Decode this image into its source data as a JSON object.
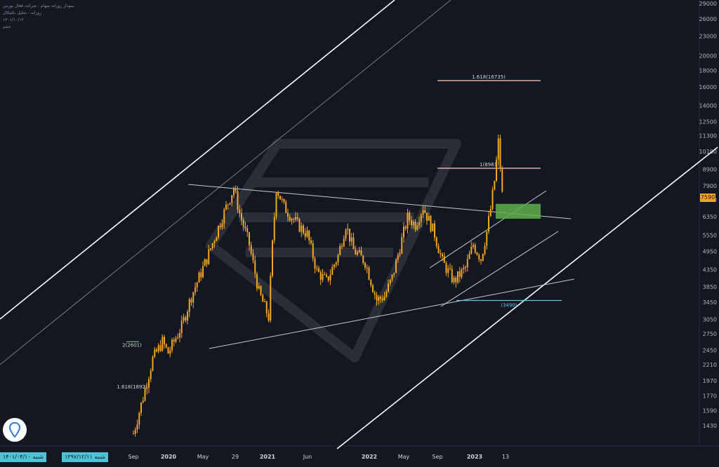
{
  "header": {
    "line1": "نمودار روزانه سهام - شرکت فعال بورس",
    "line2": "روزانه - تحلیل تکنیکال",
    "line3": "۱۴۰۱/۱۰/۱۲",
    "line4": "حجم"
  },
  "bottom_bar": {
    "date_left": "۱۴۰۱/۰۴/۱۰ شنبه",
    "date_right": "۱۳۹۷/۱۲/۱۱ شنبه"
  },
  "colors": {
    "background": "#131722",
    "candle": "#f5a623",
    "trendline": "#c7c9cf",
    "channel": "#ffffff",
    "fib_pink": "#f4b6b0",
    "fib_cyan": "#5bc6dc",
    "zone_green": "#5fae4e",
    "price_tag": "#f5a623",
    "date_tag": "#4fc3d4"
  },
  "icons": {
    "logo": "location-pin-icon"
  },
  "chart_data": {
    "type": "candlestick",
    "y_scale": "log",
    "ylim": [
      1300,
      29000
    ],
    "y_ticks": [
      1430,
      1590,
      1770,
      1970,
      2210,
      2450,
      2750,
      3050,
      3450,
      3850,
      4350,
      4950,
      5550,
      6350,
      7150,
      7900,
      8900,
      10100,
      11300,
      12500,
      14000,
      16000,
      18000,
      20000,
      23000,
      26000,
      29000
    ],
    "x_labels": [
      "Sep",
      "2020",
      "May",
      "29",
      "2021",
      "Jun",
      "2022",
      "May",
      "Sep",
      "2023",
      "13"
    ],
    "last_price": 7590,
    "price_path": [
      [
        0,
        1350
      ],
      [
        5,
        1750
      ],
      [
        10,
        2300
      ],
      [
        15,
        2600
      ],
      [
        18,
        2400
      ],
      [
        25,
        2900
      ],
      [
        30,
        3600
      ],
      [
        38,
        4700
      ],
      [
        45,
        6100
      ],
      [
        52,
        7800
      ],
      [
        55,
        6500
      ],
      [
        60,
        5200
      ],
      [
        65,
        3700
      ],
      [
        70,
        3100
      ],
      [
        72,
        5200
      ],
      [
        74,
        7800
      ],
      [
        78,
        6800
      ],
      [
        85,
        6000
      ],
      [
        90,
        5600
      ],
      [
        95,
        4300
      ],
      [
        100,
        4000
      ],
      [
        106,
        4800
      ],
      [
        110,
        6000
      ],
      [
        114,
        5000
      ],
      [
        120,
        4600
      ],
      [
        126,
        3500
      ],
      [
        130,
        3600
      ],
      [
        134,
        4100
      ],
      [
        138,
        5100
      ],
      [
        142,
        6300
      ],
      [
        146,
        6000
      ],
      [
        150,
        6800
      ],
      [
        156,
        5600
      ],
      [
        160,
        4600
      ],
      [
        166,
        4000
      ],
      [
        172,
        4400
      ],
      [
        176,
        5200
      ],
      [
        180,
        4700
      ],
      [
        183,
        5700
      ],
      [
        185,
        6700
      ],
      [
        187,
        8200
      ],
      [
        189,
        10800
      ],
      [
        191,
        7600
      ]
    ],
    "annotations": [
      {
        "label": "1.618(16735)",
        "value": 16735,
        "color": "pink"
      },
      {
        "label": "1(8961)",
        "value": 8961,
        "color": "pink"
      },
      {
        "label": "(3490)",
        "value": 3490,
        "color": "cyan"
      },
      {
        "label": "2(2601)",
        "value": 2601,
        "color": "white"
      },
      {
        "label": "1.618(1892)",
        "value": 1892,
        "color": "white"
      }
    ],
    "zone": {
      "from": 6250,
      "to": 6950,
      "color": "green"
    }
  }
}
